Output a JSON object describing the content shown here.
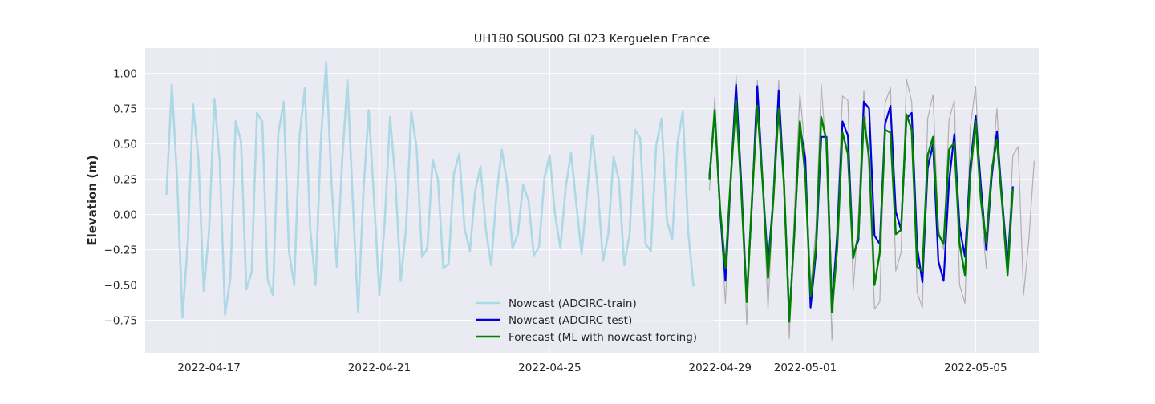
{
  "chart_data": {
    "type": "line",
    "title": "UH180 SOUS00 GL023 Kerguelen France",
    "xlabel": "",
    "ylabel": "Elevation (m)",
    "x_axis_type": "date",
    "xlim": [
      "2022-04-15T12:00",
      "2022-05-06T12:00"
    ],
    "ylim": [
      -0.98,
      1.18
    ],
    "grid": true,
    "legend_position": "bottom-center",
    "x_tick_labels": [
      "2022-04-17",
      "2022-04-21",
      "2022-04-25",
      "2022-04-29",
      "2022-05-01",
      "2022-05-05"
    ],
    "y_tick_values": [
      -0.75,
      -0.5,
      -0.25,
      0.0,
      0.25,
      0.5,
      0.75,
      1.0
    ],
    "y_tick_labels": [
      "−0.75",
      "−0.50",
      "−0.25",
      "0.00",
      "0.25",
      "0.50",
      "0.75",
      "1.00"
    ],
    "series": [
      {
        "name": "",
        "color": "#b0b0b0",
        "x_start": "2022-04-28T18:00",
        "x_step_hours": 3,
        "values": [
          0.17,
          0.83,
          0.01,
          -0.63,
          0.22,
          0.99,
          0.22,
          -0.78,
          0.13,
          0.95,
          0.24,
          -0.67,
          0.13,
          0.95,
          0.24,
          -0.88,
          0.06,
          0.86,
          0.44,
          -0.52,
          -0.1,
          0.92,
          0.39,
          -0.89,
          -0.02,
          0.84,
          0.81,
          -0.54,
          0.0,
          0.88,
          0.28,
          -0.67,
          -0.62,
          0.79,
          0.9,
          -0.4,
          -0.27,
          0.96,
          0.8,
          -0.55,
          -0.66,
          0.68,
          0.85,
          -0.1,
          -0.25,
          0.67,
          0.81,
          -0.5,
          -0.63,
          0.62,
          0.91,
          0.07,
          -0.38,
          0.27,
          0.75,
          0.06,
          -0.36,
          0.42,
          0.48,
          -0.57,
          -0.18,
          0.38
        ]
      },
      {
        "name": "Nowcast (ADCIRC-train)",
        "color": "#add8e6",
        "x_start": "2022-04-16T00:00",
        "x_step_hours": 3,
        "values": [
          0.14,
          0.92,
          0.25,
          -0.73,
          -0.2,
          0.78,
          0.4,
          -0.54,
          -0.12,
          0.82,
          0.38,
          -0.71,
          -0.45,
          0.66,
          0.52,
          -0.53,
          -0.41,
          0.72,
          0.66,
          -0.46,
          -0.57,
          0.57,
          0.8,
          -0.26,
          -0.5,
          0.56,
          0.9,
          -0.1,
          -0.5,
          0.52,
          1.08,
          0.22,
          -0.37,
          0.38,
          0.95,
          0.1,
          -0.69,
          0.16,
          0.74,
          0.1,
          -0.57,
          -0.05,
          0.69,
          0.25,
          -0.47,
          -0.1,
          0.73,
          0.47,
          -0.3,
          -0.24,
          0.39,
          0.25,
          -0.38,
          -0.35,
          0.29,
          0.43,
          -0.1,
          -0.26,
          0.17,
          0.34,
          -0.11,
          -0.36,
          0.14,
          0.46,
          0.22,
          -0.24,
          -0.14,
          0.21,
          0.1,
          -0.29,
          -0.23,
          0.26,
          0.42,
          0.0,
          -0.24,
          0.19,
          0.44,
          0.07,
          -0.28,
          0.15,
          0.56,
          0.2,
          -0.33,
          -0.14,
          0.41,
          0.24,
          -0.36,
          -0.14,
          0.6,
          0.54,
          -0.21,
          -0.26,
          0.49,
          0.68,
          -0.04,
          -0.18,
          0.51,
          0.73,
          -0.12,
          -0.51
        ]
      },
      {
        "name": "Nowcast (ADCIRC-test)",
        "color": "#0000dd",
        "x_start": "2022-04-28T18:00",
        "x_step_hours": 3,
        "values": [
          0.27,
          0.72,
          0.02,
          -0.47,
          0.25,
          0.92,
          0.21,
          -0.6,
          0.09,
          0.91,
          0.22,
          -0.36,
          0.12,
          0.88,
          0.22,
          -0.74,
          -0.1,
          0.63,
          0.4,
          -0.66,
          -0.27,
          0.55,
          0.55,
          -0.65,
          -0.15,
          0.66,
          0.56,
          -0.29,
          -0.18,
          0.8,
          0.75,
          -0.15,
          -0.21,
          0.64,
          0.77,
          0.02,
          -0.11,
          0.68,
          0.72,
          -0.23,
          -0.48,
          0.33,
          0.5,
          -0.33,
          -0.47,
          0.23,
          0.57,
          -0.09,
          -0.3,
          0.34,
          0.7,
          0.2,
          -0.25,
          0.26,
          0.59,
          0.1,
          -0.35,
          0.2
        ]
      },
      {
        "name": "Forecast (ML with nowcast forcing)",
        "color": "#008000",
        "x_start": "2022-04-28T18:00",
        "x_step_hours": 3,
        "values": [
          0.25,
          0.74,
          0.04,
          -0.38,
          0.26,
          0.81,
          0.15,
          -0.62,
          0.12,
          0.77,
          0.22,
          -0.45,
          0.11,
          0.75,
          0.22,
          -0.76,
          -0.1,
          0.66,
          0.28,
          -0.58,
          -0.23,
          0.69,
          0.52,
          -0.69,
          -0.24,
          0.58,
          0.43,
          -0.31,
          -0.15,
          0.69,
          0.4,
          -0.5,
          -0.27,
          0.6,
          0.58,
          -0.14,
          -0.11,
          0.71,
          0.6,
          -0.37,
          -0.4,
          0.42,
          0.55,
          -0.14,
          -0.21,
          0.46,
          0.51,
          -0.21,
          -0.43,
          0.28,
          0.66,
          0.1,
          -0.2,
          0.31,
          0.53,
          0.07,
          -0.43,
          0.18
        ]
      }
    ]
  }
}
